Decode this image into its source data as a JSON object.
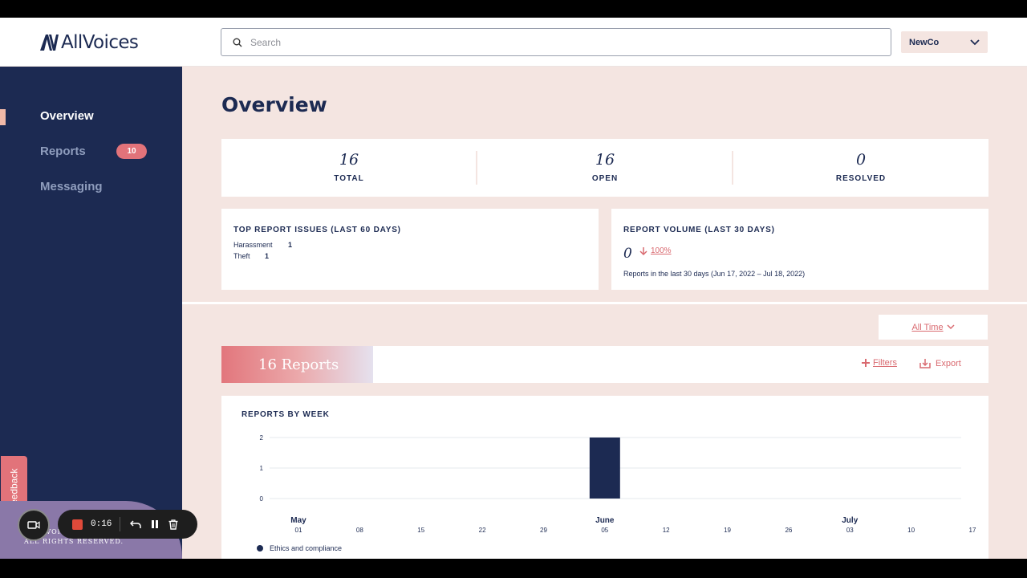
{
  "header": {
    "logo_text": "AllVoices",
    "search_placeholder": "Search",
    "org_name": "NewCo"
  },
  "sidebar": {
    "items": [
      {
        "label": "Overview",
        "active": true
      },
      {
        "label": "Reports",
        "badge": "10"
      },
      {
        "label": "Messaging"
      }
    ],
    "footer_line1": "©ALLVOICES",
    "footer_line2": "ALL RIGHTS RESERVED.",
    "feedback_label": "Feedback"
  },
  "main": {
    "title": "Overview",
    "stats": [
      {
        "value": "16",
        "label": "TOTAL"
      },
      {
        "value": "16",
        "label": "OPEN"
      },
      {
        "value": "0",
        "label": "RESOLVED"
      }
    ],
    "top_issues": {
      "title": "TOP REPORT ISSUES (LAST 60 DAYS)",
      "rows": [
        {
          "name": "Harassment",
          "count": "1"
        },
        {
          "name": "Theft",
          "count": "1"
        }
      ]
    },
    "report_volume": {
      "title": "REPORT VOLUME (LAST 30 DAYS)",
      "value": "0",
      "change": "100%",
      "caption": "Reports in the last 30 days (Jun 17, 2022 – Jul 18, 2022)"
    },
    "range_label": "All Time",
    "reports_count_label": "16 Reports",
    "filters_label": "Filters",
    "export_label": "Export"
  },
  "chart_data": {
    "type": "bar",
    "title": "REPORTS BY WEEK",
    "y_ticks": [
      "0",
      "1",
      "2"
    ],
    "ylim": [
      0,
      2
    ],
    "grid": true,
    "month_labels": [
      {
        "label": "May",
        "at": "01"
      },
      {
        "label": "June",
        "at": "05"
      },
      {
        "label": "July",
        "at": "03"
      }
    ],
    "categories": [
      "01",
      "08",
      "15",
      "22",
      "29",
      "05",
      "12",
      "19",
      "26",
      "03",
      "10",
      "17"
    ],
    "series": [
      {
        "name": "Ethics and compliance",
        "values": [
          0,
          0,
          0,
          0,
          0,
          2,
          0,
          0,
          0,
          0,
          0,
          0
        ],
        "color": "#1c2a52"
      }
    ]
  },
  "recorder": {
    "time": "0:16"
  },
  "colors": {
    "navy": "#1c2a52",
    "background": "#f4e5e1",
    "accent": "#e2737a"
  }
}
